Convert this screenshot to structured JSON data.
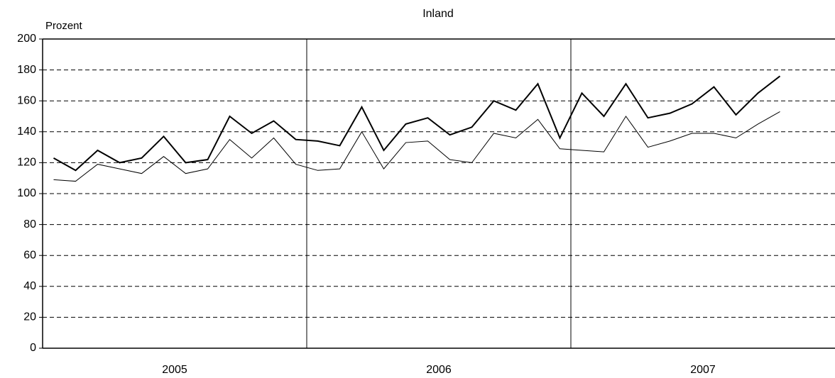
{
  "chart_data": {
    "type": "line",
    "title": "Inland",
    "y_label": "Prozent",
    "categories": [
      null,
      null,
      null,
      null,
      null,
      null,
      null,
      null,
      null,
      null,
      null,
      null,
      null,
      null,
      null,
      null,
      null,
      null,
      null,
      null,
      null,
      null,
      null,
      null,
      null,
      null,
      null,
      null,
      null,
      null,
      null,
      null,
      null,
      null,
      null,
      null
    ],
    "groups": [
      "2005",
      "2006",
      "2007"
    ],
    "series": [
      {
        "color": "#000000",
        "width": 2,
        "values": [
          123,
          115,
          128,
          120,
          123,
          137,
          120,
          122,
          150,
          139,
          147,
          135,
          134,
          131,
          156,
          128,
          145,
          149,
          138,
          143,
          160,
          154,
          171,
          136,
          165,
          150,
          171,
          149,
          152,
          158,
          169,
          151,
          165,
          176,
          null,
          null
        ]
      },
      {
        "color": "#000000",
        "width": 1,
        "values": [
          109,
          108,
          119,
          116,
          113,
          124,
          113,
          116,
          135,
          123,
          136,
          119,
          115,
          116,
          140,
          116,
          133,
          134,
          122,
          120,
          139,
          136,
          148,
          129,
          128,
          127,
          150,
          130,
          134,
          139,
          139,
          136,
          145,
          153,
          null,
          null
        ]
      }
    ],
    "ylim": [
      0,
      200
    ],
    "yticks": [
      0,
      20,
      40,
      60,
      80,
      100,
      120,
      140,
      160,
      180,
      200
    ],
    "grid": true
  }
}
